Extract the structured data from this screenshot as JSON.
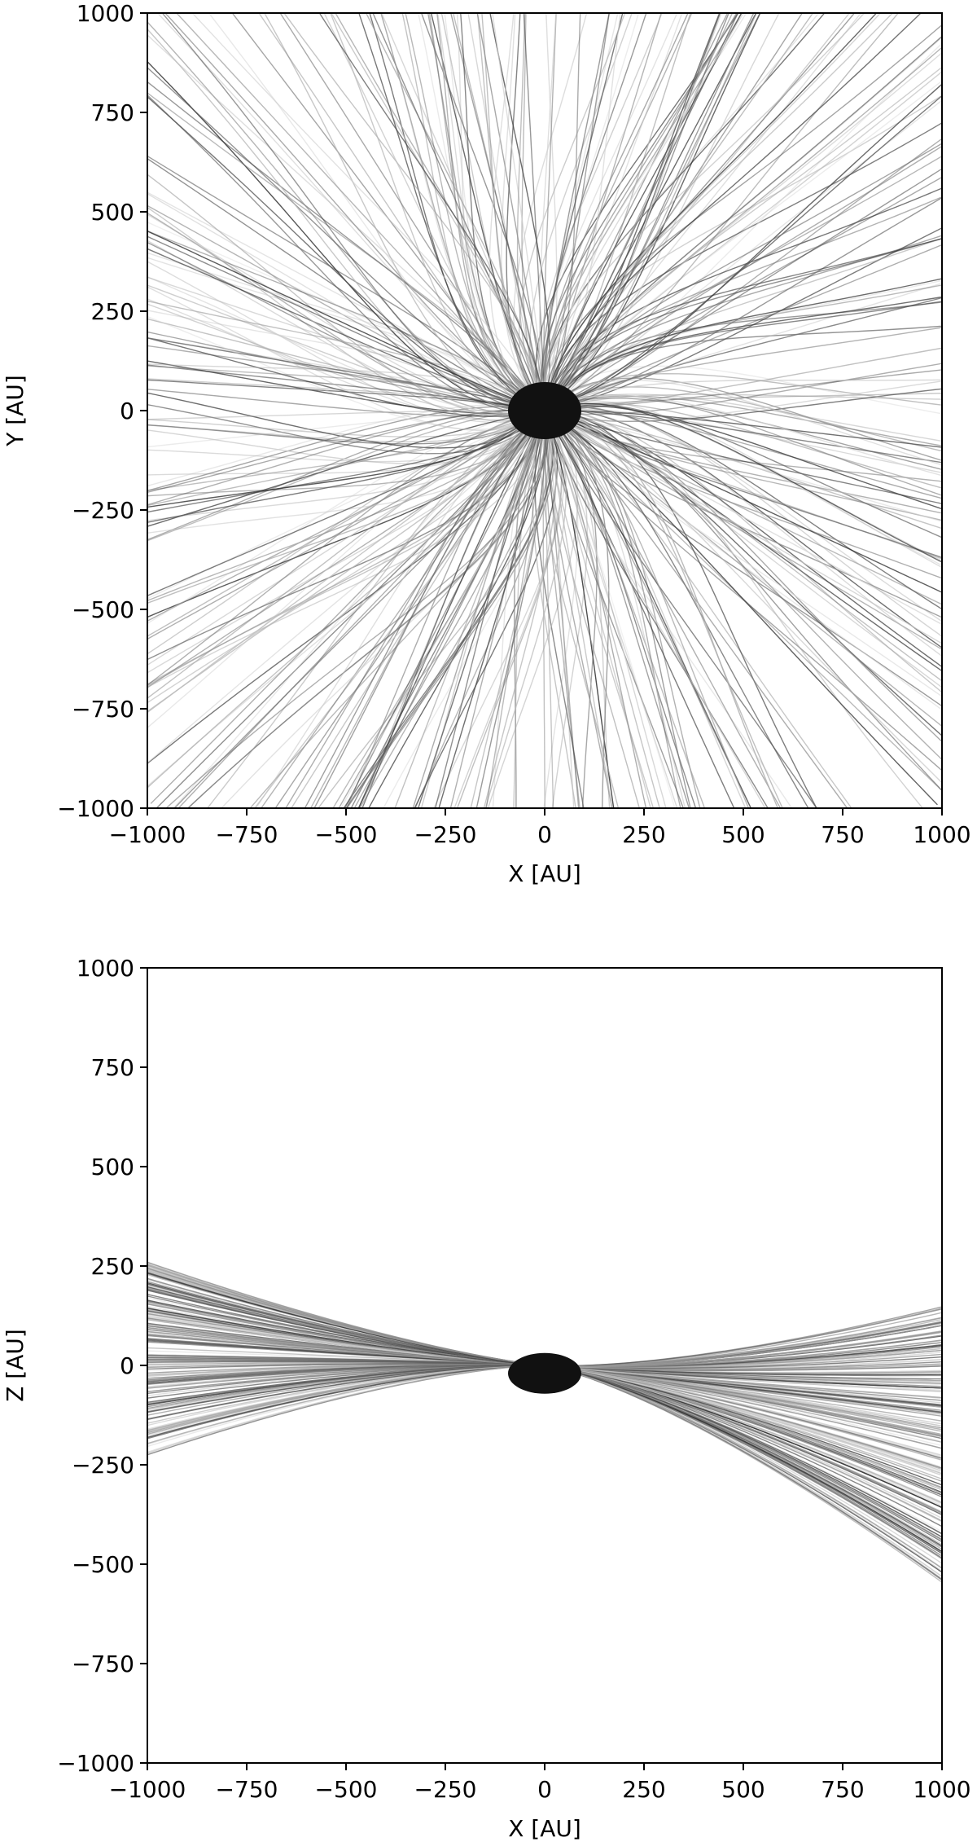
{
  "chart_data": [
    {
      "type": "line",
      "panel": "top",
      "description_type": "streamlines",
      "xlabel": "X [AU]",
      "ylabel": "Y [AU]",
      "xlim": [
        -1000,
        1000
      ],
      "ylim": [
        -1000,
        1000
      ],
      "xticks": [
        -1000,
        -750,
        -500,
        -250,
        0,
        250,
        500,
        750,
        1000
      ],
      "yticks": [
        -1000,
        -750,
        -500,
        -250,
        0,
        250,
        500,
        750,
        1000
      ],
      "xtick_labels": [
        "−1000",
        "−750",
        "−500",
        "−250",
        "0",
        "250",
        "500",
        "750",
        "1000"
      ],
      "ytick_labels": [
        "−1000",
        "−750",
        "−500",
        "−250",
        "0",
        "250",
        "500",
        "750",
        "1000"
      ],
      "grid": false,
      "colormap": "grayscale",
      "center": [
        0,
        0
      ]
    },
    {
      "type": "line",
      "panel": "bottom",
      "description_type": "streamlines",
      "xlabel": "X [AU]",
      "ylabel": "Z [AU]",
      "xlim": [
        -1000,
        1000
      ],
      "ylim": [
        -1000,
        1000
      ],
      "xticks": [
        -1000,
        -750,
        -500,
        -250,
        0,
        250,
        500,
        750,
        1000
      ],
      "yticks": [
        -1000,
        -750,
        -500,
        -250,
        0,
        250,
        500,
        750,
        1000
      ],
      "xtick_labels": [
        "−1000",
        "−750",
        "−500",
        "−250",
        "0",
        "250",
        "500",
        "750",
        "1000"
      ],
      "ytick_labels": [
        "−1000",
        "−750",
        "−500",
        "−250",
        "0",
        "250",
        "500",
        "750",
        "1000"
      ],
      "grid": false,
      "colormap": "grayscale",
      "center": [
        0,
        0
      ]
    }
  ]
}
